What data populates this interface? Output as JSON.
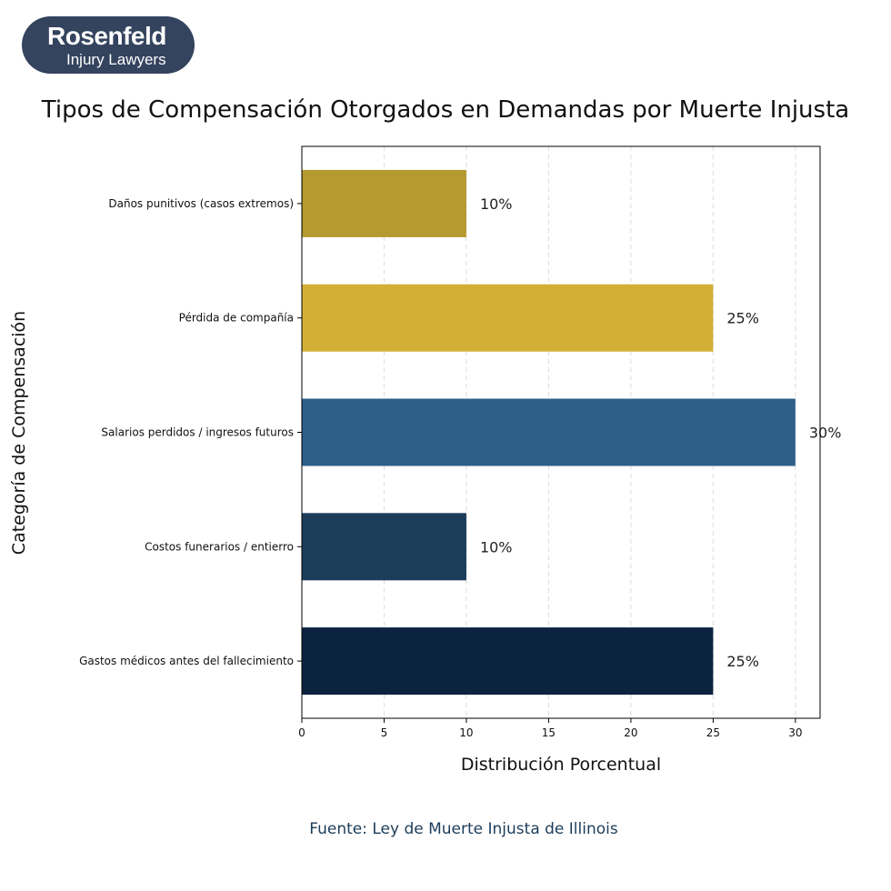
{
  "logo": {
    "line1": "Rosenfeld",
    "line2": "Injury Lawyers"
  },
  "source": "Fuente: Ley de Muerte Injusta de Illinois",
  "chart_data": {
    "type": "bar",
    "orientation": "horizontal",
    "title": "Tipos de Compensación Otorgados en Demandas por Muerte Injusta",
    "xlabel": "Distribución Porcentual",
    "ylabel": "Categoría de Compensación",
    "categories": [
      "Daños punitivos (casos extremos)",
      "Pérdida de compañía",
      "Salarios perdidos / ingresos futuros",
      "Costos funerarios / entierro",
      "Gastos médicos antes del fallecimiento"
    ],
    "values": [
      10,
      25,
      30,
      10,
      25
    ],
    "data_labels": [
      "10%",
      "25%",
      "30%",
      "10%",
      "25%"
    ],
    "colors": [
      "#b59a30",
      "#d3af37",
      "#2e5e8a",
      "#1c3d5a",
      "#0c2340"
    ],
    "xlim": [
      0,
      31.5
    ],
    "xticks": [
      "0",
      "5",
      "10",
      "15",
      "20",
      "25",
      "30"
    ],
    "grid": "vertical dashed"
  }
}
